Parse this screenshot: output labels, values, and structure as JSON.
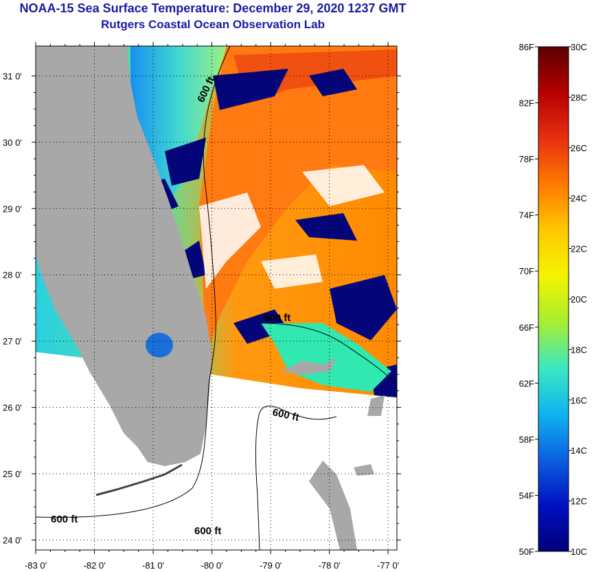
{
  "header": {
    "title": "NOAA-15 Sea Surface Temperature:  December 29, 2020 1237 GMT",
    "subtitle": "Rutgers Coastal Ocean Observation Lab"
  },
  "map": {
    "lat_ticks": [
      {
        "value": 31,
        "label": "31 0'"
      },
      {
        "value": 30,
        "label": "30 0'"
      },
      {
        "value": 29,
        "label": "29 0'"
      },
      {
        "value": 28,
        "label": "28 0'"
      },
      {
        "value": 27,
        "label": "27 0'"
      },
      {
        "value": 26,
        "label": "26 0'"
      },
      {
        "value": 25,
        "label": "25 0'"
      },
      {
        "value": 24,
        "label": "24 0'"
      }
    ],
    "lon_ticks": [
      {
        "value": -83,
        "label": "-83 0'"
      },
      {
        "value": -82,
        "label": "-82 0'"
      },
      {
        "value": -81,
        "label": "-81 0'"
      },
      {
        "value": -80,
        "label": "-80 0'"
      },
      {
        "value": -79,
        "label": "-79 0'"
      },
      {
        "value": -78,
        "label": "-78 0'"
      },
      {
        "value": -77,
        "label": "-77 0'"
      }
    ],
    "contour_labels": [
      "600 ft",
      "600 ft",
      "600 ft",
      "600 ft",
      "600 ft"
    ],
    "colors": {
      "land": "#a8a8a8",
      "no_data": "#ffffff",
      "cloud": "#05057a"
    }
  },
  "colorbar": {
    "fahrenheit": [
      "86F",
      "82F",
      "78F",
      "74F",
      "70F",
      "66F",
      "62F",
      "58F",
      "54F",
      "50F"
    ],
    "celsius": [
      "30C",
      "28C",
      "26C",
      "24C",
      "22C",
      "20C",
      "18C",
      "16C",
      "14C",
      "12C",
      "10C"
    ],
    "colors": [
      "#5a0000",
      "#b50000",
      "#e83010",
      "#ff7a00",
      "#ffc800",
      "#f4f400",
      "#a8ee30",
      "#3ce8c0",
      "#10b4f0",
      "#0a60e0",
      "#0010c0",
      "#00007a"
    ]
  }
}
